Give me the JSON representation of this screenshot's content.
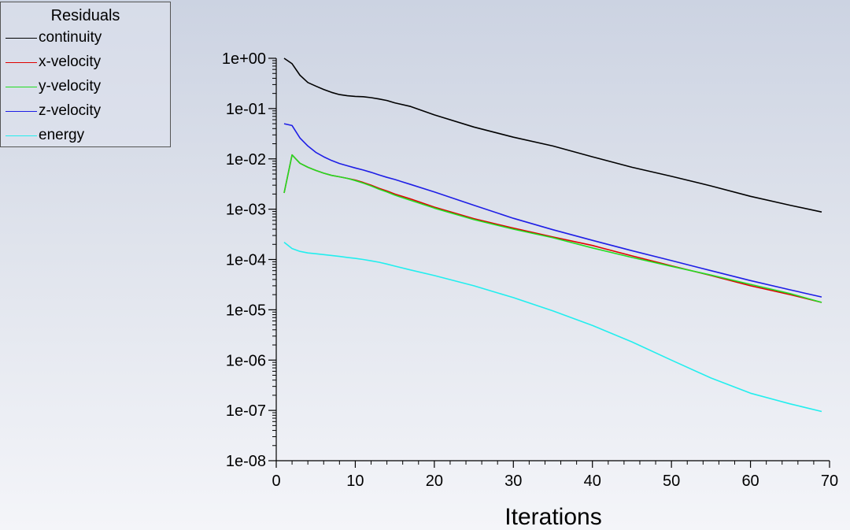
{
  "legend": {
    "title": "Residuals"
  },
  "chart_data": {
    "type": "line",
    "title": "",
    "xlabel": "Iterations",
    "ylabel": "",
    "yscale": "log",
    "xlim": [
      0,
      70
    ],
    "ylim": [
      1e-08,
      1
    ],
    "x_ticks": [
      "0",
      "10",
      "20",
      "30",
      "40",
      "50",
      "60",
      "70"
    ],
    "y_ticks": [
      "1e+00",
      "1e-01",
      "1e-02",
      "1e-03",
      "1e-04",
      "1e-05",
      "1e-06",
      "1e-07",
      "1e-08"
    ],
    "grid": false,
    "legend_position": "top-left",
    "series": [
      {
        "name": "continuity",
        "color": "#000000",
        "x": [
          1,
          2,
          3,
          4,
          5,
          6,
          7,
          8,
          9,
          10,
          11,
          12,
          13,
          14,
          15,
          17,
          20,
          25,
          30,
          35,
          40,
          45,
          50,
          55,
          60,
          65,
          69
        ],
        "y": [
          1,
          0.78,
          0.46,
          0.33,
          0.28,
          0.24,
          0.21,
          0.19,
          0.18,
          0.175,
          0.172,
          0.165,
          0.155,
          0.145,
          0.13,
          0.11,
          0.075,
          0.043,
          0.027,
          0.018,
          0.011,
          0.0068,
          0.0045,
          0.0029,
          0.0018,
          0.0012,
          0.00088
        ]
      },
      {
        "name": "x-velocity",
        "color": "#e00000",
        "x": [
          1,
          2,
          3,
          4,
          5,
          6,
          7,
          8,
          9,
          10,
          11,
          12,
          13,
          14,
          15,
          17,
          20,
          25,
          30,
          35,
          40,
          45,
          50,
          55,
          60,
          65,
          69
        ],
        "y": [
          0.0021,
          0.012,
          0.0082,
          0.0068,
          0.0059,
          0.0052,
          0.0047,
          0.0044,
          0.0041,
          0.0038,
          0.0034,
          0.003,
          0.0026,
          0.0023,
          0.002,
          0.0016,
          0.0011,
          0.00065,
          0.00042,
          0.00028,
          0.00019,
          0.000118,
          7.5e-05,
          4.8e-05,
          3e-05,
          2e-05,
          1.4e-05
        ]
      },
      {
        "name": "y-velocity",
        "color": "#22dd22",
        "x": [
          1,
          2,
          3,
          4,
          5,
          6,
          7,
          8,
          9,
          10,
          11,
          12,
          13,
          14,
          15,
          17,
          20,
          25,
          30,
          35,
          40,
          45,
          50,
          55,
          60,
          65,
          69
        ],
        "y": [
          0.0021,
          0.012,
          0.0082,
          0.0068,
          0.0059,
          0.0052,
          0.0047,
          0.0044,
          0.0041,
          0.0037,
          0.0033,
          0.0029,
          0.0025,
          0.0022,
          0.0019,
          0.0015,
          0.00105,
          0.00062,
          0.0004,
          0.00027,
          0.00017,
          0.00011,
          7.3e-05,
          4.9e-05,
          3.2e-05,
          2.1e-05,
          1.4e-05
        ]
      },
      {
        "name": "z-velocity",
        "color": "#1e1ee6",
        "x": [
          1,
          2,
          3,
          4,
          5,
          6,
          7,
          8,
          9,
          10,
          11,
          12,
          13,
          14,
          15,
          17,
          20,
          25,
          30,
          35,
          40,
          45,
          50,
          55,
          60,
          65,
          69
        ],
        "y": [
          0.05,
          0.046,
          0.026,
          0.018,
          0.0135,
          0.011,
          0.0093,
          0.0081,
          0.0073,
          0.0066,
          0.006,
          0.0054,
          0.0048,
          0.0043,
          0.0039,
          0.0031,
          0.0022,
          0.0012,
          0.00066,
          0.00039,
          0.00024,
          0.00015,
          9.5e-05,
          6e-05,
          3.8e-05,
          2.5e-05,
          1.8e-05
        ]
      },
      {
        "name": "energy",
        "color": "#22eeee",
        "x": [
          1,
          2,
          3,
          4,
          5,
          6,
          7,
          8,
          9,
          10,
          11,
          12,
          13,
          14,
          15,
          17,
          20,
          25,
          30,
          35,
          40,
          45,
          50,
          55,
          60,
          65,
          69
        ],
        "y": [
          0.00022,
          0.000165,
          0.000145,
          0.000135,
          0.00013,
          0.000125,
          0.00012,
          0.000115,
          0.00011,
          0.000105,
          0.0001,
          9.4e-05,
          8.8e-05,
          8.1e-05,
          7.4e-05,
          6.2e-05,
          4.8e-05,
          3e-05,
          1.75e-05,
          9.5e-06,
          4.9e-06,
          2.3e-06,
          1e-06,
          4.4e-07,
          2.2e-07,
          1.35e-07,
          9.5e-08
        ]
      }
    ]
  }
}
